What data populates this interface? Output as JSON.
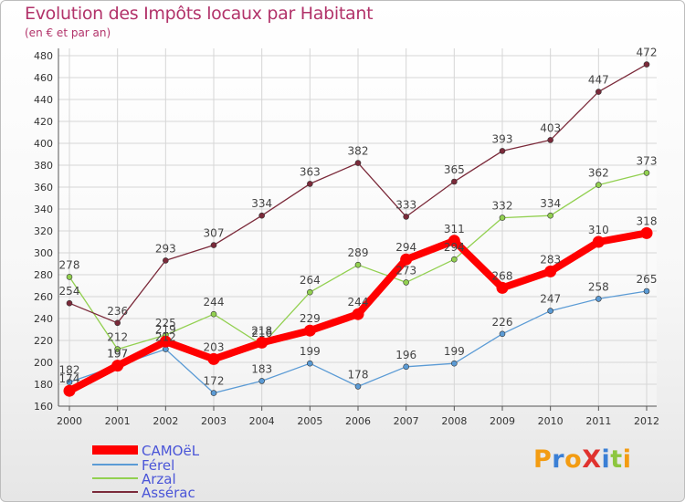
{
  "header": {
    "title": "Evolution des Impôts locaux par Habitant",
    "subtitle": "(en € et par an)"
  },
  "chart_data": {
    "type": "line",
    "title": "Evolution des Impôts locaux par Habitant",
    "subtitle": "(en € et par an)",
    "xlabel": "",
    "ylabel": "",
    "x": [
      "2000",
      "2001",
      "2002",
      "2003",
      "2004",
      "2005",
      "2006",
      "2007",
      "2008",
      "2009",
      "2010",
      "2011",
      "2012"
    ],
    "ylim": [
      160,
      480
    ],
    "yticks": [
      160,
      180,
      200,
      220,
      240,
      260,
      280,
      300,
      320,
      340,
      360,
      380,
      400,
      420,
      440,
      460,
      480
    ],
    "grid": true,
    "legend_position": "bottom-left",
    "series": [
      {
        "name": "CAMOëL",
        "color": "#ff0000",
        "values": [
          174,
          197,
          219,
          203,
          218,
          229,
          244,
          294,
          311,
          268,
          283,
          310,
          318
        ]
      },
      {
        "name": "Férel",
        "color": "#5b9bd5",
        "values": [
          182,
          197,
          212,
          172,
          183,
          199,
          178,
          196,
          199,
          226,
          247,
          258,
          265
        ]
      },
      {
        "name": "Arzal",
        "color": "#92d050",
        "values": [
          278,
          212,
          225,
          244,
          216,
          264,
          289,
          273,
          294,
          332,
          334,
          362,
          373
        ]
      },
      {
        "name": "Assérac",
        "color": "#7b2a3a",
        "values": [
          254,
          236,
          293,
          307,
          334,
          363,
          382,
          333,
          365,
          393,
          403,
          447,
          472
        ]
      }
    ]
  },
  "logo": {
    "text": "ProXiti"
  }
}
